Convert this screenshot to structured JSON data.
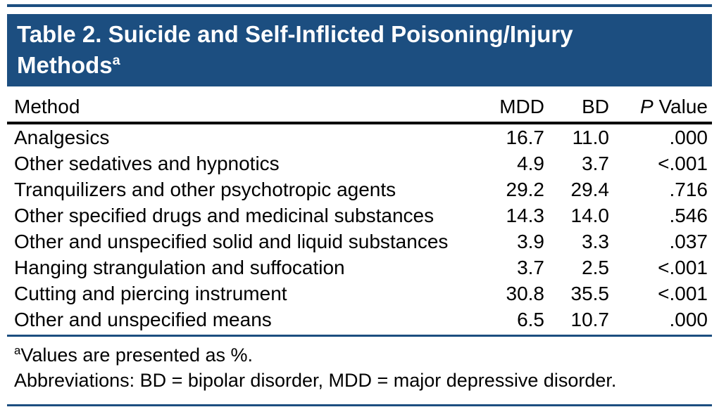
{
  "colors": {
    "accent_navy": "#1c4e80",
    "rule_black": "#000000",
    "title_text": "#ffffff",
    "body_text": "#000000"
  },
  "table": {
    "title_line1": "Table 2. Suicide and Self-Inflicted Poisoning/Injury",
    "title_line2": "Methods",
    "title_sup": "a",
    "columns": {
      "method": "Method",
      "mdd": "MDD",
      "bd": "BD",
      "p_italic": "P",
      "p_rest": " Value"
    },
    "rows": [
      {
        "method": "Analgesics",
        "mdd": "16.7",
        "bd": "11.0",
        "p": ".000"
      },
      {
        "method": "Other sedatives and hypnotics",
        "mdd": "4.9",
        "bd": "3.7",
        "p": "<.001"
      },
      {
        "method": "Tranquilizers and other psychotropic agents",
        "mdd": "29.2",
        "bd": "29.4",
        "p": ".716"
      },
      {
        "method": "Other specified drugs and medicinal substances",
        "mdd": "14.3",
        "bd": "14.0",
        "p": ".546"
      },
      {
        "method": "Other and unspecified solid and liquid substances",
        "mdd": "3.9",
        "bd": "3.3",
        "p": ".037"
      },
      {
        "method": "Hanging strangulation and suffocation",
        "mdd": "3.7",
        "bd": "2.5",
        "p": "<.001"
      },
      {
        "method": "Cutting and piercing instrument",
        "mdd": "30.8",
        "bd": "35.5",
        "p": "<.001"
      },
      {
        "method": "Other and unspecified means",
        "mdd": "6.5",
        "bd": "10.7",
        "p": ".000"
      }
    ],
    "footnotes": [
      {
        "sup": "a",
        "text": "Values are presented as %."
      },
      {
        "text": "Abbreviations: BD = bipolar disorder, MDD = major depressive disorder."
      }
    ]
  }
}
